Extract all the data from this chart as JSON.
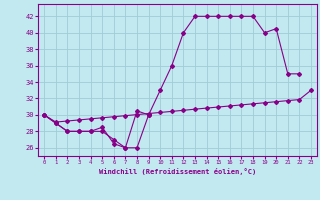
{
  "xlabel": "Windchill (Refroidissement éolien,°C)",
  "bg_color": "#c2e8f0",
  "grid_color": "#a0ccd8",
  "line_color": "#880088",
  "xlim": [
    -0.5,
    23.5
  ],
  "ylim": [
    25.0,
    43.5
  ],
  "xticks": [
    0,
    1,
    2,
    3,
    4,
    5,
    6,
    7,
    8,
    9,
    10,
    11,
    12,
    13,
    14,
    15,
    16,
    17,
    18,
    19,
    20,
    21,
    22,
    23
  ],
  "yticks": [
    26,
    28,
    30,
    32,
    34,
    36,
    38,
    40,
    42
  ],
  "line1_x": [
    0,
    1,
    2,
    3,
    4,
    5,
    6,
    7,
    8,
    9,
    10,
    11,
    12,
    13,
    14,
    15,
    16,
    17,
    18,
    19,
    20,
    21,
    22
  ],
  "line1_y": [
    30,
    29,
    28,
    28,
    28,
    28,
    27,
    26,
    26,
    30,
    33,
    36,
    40,
    42,
    42,
    42,
    42,
    42,
    42,
    40,
    40.5,
    35,
    35
  ],
  "line2_x": [
    0,
    1,
    2,
    3,
    4,
    5,
    6,
    7,
    8,
    9,
    10,
    11,
    12,
    13,
    14,
    15,
    16,
    17,
    18,
    19,
    20,
    21,
    22,
    23
  ],
  "line2_y": [
    30,
    29.13,
    29.26,
    29.39,
    29.52,
    29.65,
    29.78,
    29.91,
    30.04,
    30.17,
    30.3,
    30.43,
    30.56,
    30.7,
    30.83,
    30.96,
    31.09,
    31.22,
    31.35,
    31.48,
    31.61,
    31.74,
    31.87,
    33
  ],
  "line3_x": [
    0,
    1,
    2,
    3,
    4,
    5,
    6,
    7,
    8,
    9
  ],
  "line3_y": [
    30,
    29,
    28,
    28,
    28,
    28.5,
    26.5,
    26,
    30.5,
    30
  ]
}
